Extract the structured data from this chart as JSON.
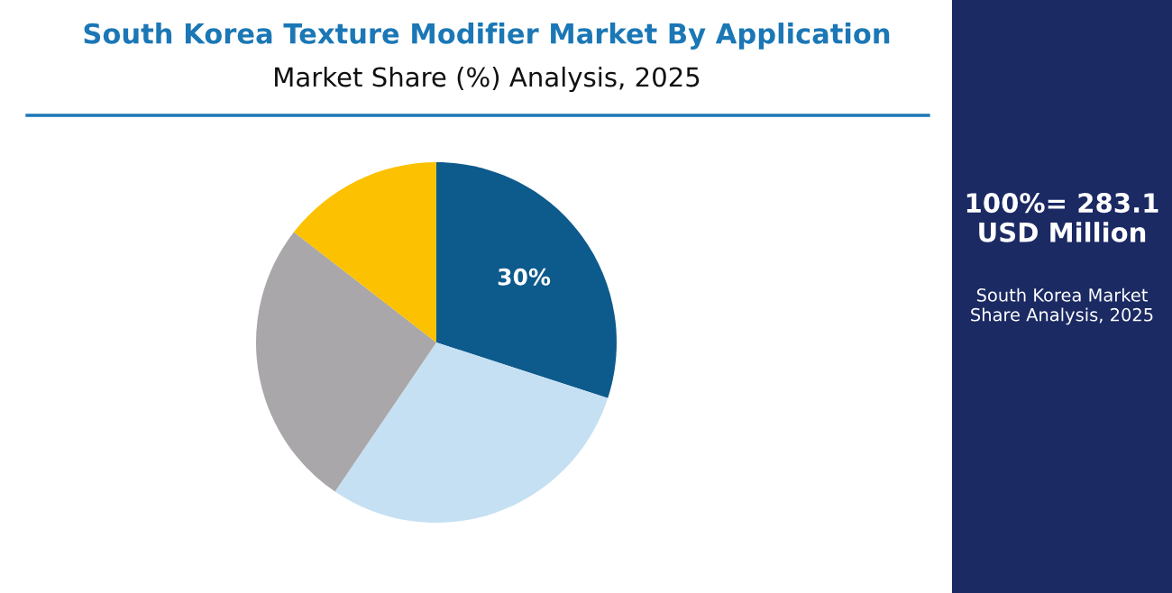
{
  "chart_data": {
    "type": "pie",
    "title": "South Korea Texture Modifier Market By Application",
    "subtitle": "Market Share (%) Analysis, 2025",
    "categories": [
      null,
      null,
      null,
      null
    ],
    "values": [
      30,
      29.5,
      26,
      14.5
    ],
    "colors": [
      "#0d5a8c",
      "#c6e0f3",
      "#a9a7a9",
      "#fcc100"
    ],
    "value_labels": [
      "30%",
      null,
      null,
      null
    ],
    "annotations": [
      "100%= 283.1 USD Million",
      "South Korea Market Share Analysis, 2025"
    ]
  }
}
